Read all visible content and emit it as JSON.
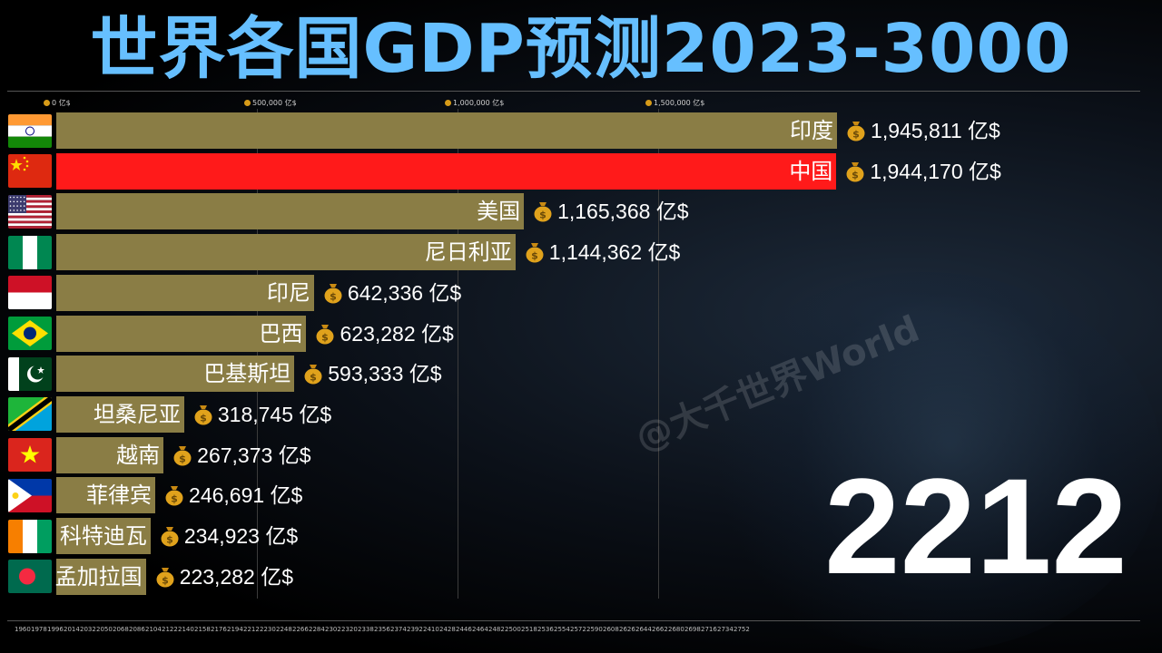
{
  "title": "世界各国GDP预测2023-3000",
  "current_year": "2212",
  "watermark": "@大千世界World",
  "colors": {
    "bar_default": "#8a7d45",
    "bar_china": "#ff1a1a",
    "title": "#66bfff"
  },
  "chart_data": {
    "type": "bar",
    "orientation": "horizontal",
    "title": "世界各国GDP预测2023-3000",
    "unit": "亿$",
    "xlim": [
      0,
      2000000
    ],
    "x_ticks": [
      {
        "value": 0,
        "label": "0 亿$"
      },
      {
        "value": 500000,
        "label": "500,000 亿$"
      },
      {
        "value": 1000000,
        "label": "1,000,000 亿$"
      },
      {
        "value": 1500000,
        "label": "1,500,000 亿$"
      }
    ],
    "bars": [
      {
        "country": "印度",
        "flag": "india",
        "value": 1945811,
        "value_text": "1,945,811 亿$"
      },
      {
        "country": "中国",
        "flag": "china",
        "value": 1944170,
        "value_text": "1,944,170 亿$"
      },
      {
        "country": "美国",
        "flag": "usa",
        "value": 1165368,
        "value_text": "1,165,368 亿$"
      },
      {
        "country": "尼日利亚",
        "flag": "nigeria",
        "value": 1144362,
        "value_text": "1,144,362 亿$"
      },
      {
        "country": "印尼",
        "flag": "indonesia",
        "value": 642336,
        "value_text": "642,336 亿$"
      },
      {
        "country": "巴西",
        "flag": "brazil",
        "value": 623282,
        "value_text": "623,282 亿$"
      },
      {
        "country": "巴基斯坦",
        "flag": "pakistan",
        "value": 593333,
        "value_text": "593,333 亿$"
      },
      {
        "country": "坦桑尼亚",
        "flag": "tanzania",
        "value": 318745,
        "value_text": "318,745 亿$"
      },
      {
        "country": "越南",
        "flag": "vietnam",
        "value": 267373,
        "value_text": "267,373 亿$"
      },
      {
        "country": "菲律宾",
        "flag": "philippines",
        "value": 246691,
        "value_text": "246,691 亿$"
      },
      {
        "country": "科特迪瓦",
        "flag": "ivorycoast",
        "value": 234923,
        "value_text": "234,923 亿$"
      },
      {
        "country": "孟加拉国",
        "flag": "bangladesh",
        "value": 223282,
        "value_text": "223,282 亿$"
      }
    ],
    "timeline_years": [
      "1960",
      "1978",
      "1996",
      "2014",
      "2032",
      "2050",
      "2068",
      "2086",
      "2104",
      "2122",
      "2140",
      "2158",
      "2176",
      "2194",
      "2212",
      "2230",
      "2248",
      "2266",
      "2284",
      "2302",
      "2320",
      "2338",
      "2356",
      "2374",
      "2392",
      "2410",
      "2428",
      "2446",
      "2464",
      "2482",
      "2500",
      "2518",
      "2536",
      "2554",
      "2572",
      "2590",
      "2608",
      "2626",
      "2644",
      "2662",
      "2680",
      "2698",
      "2716",
      "2734",
      "2752"
    ]
  }
}
